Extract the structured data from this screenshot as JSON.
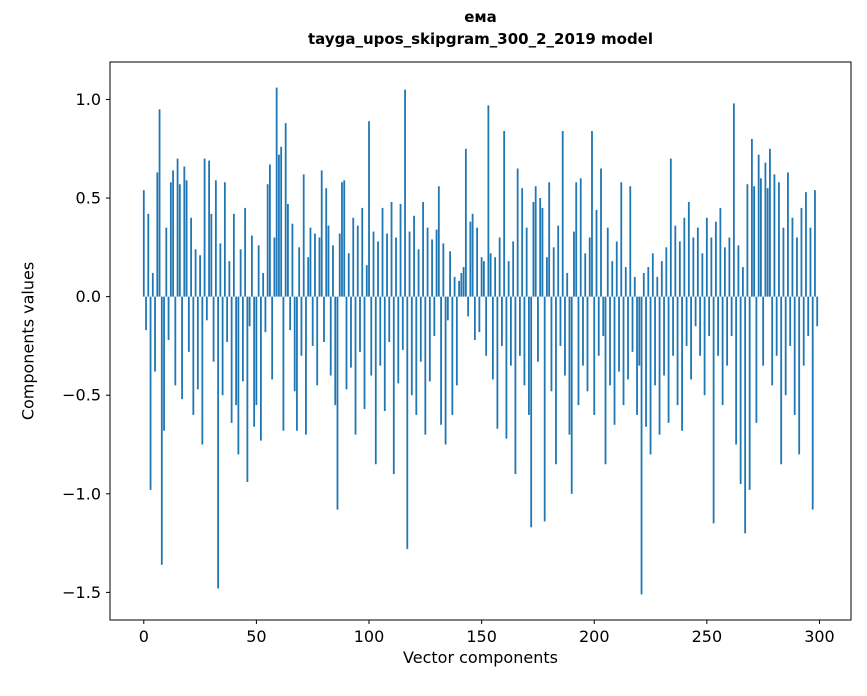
{
  "figure": {
    "title": "ема",
    "subtitle": "tayga_upos_skipgram_300_2_2019 model",
    "xlabel": "Vector components",
    "ylabel": "Components values"
  },
  "chart_data": {
    "type": "bar",
    "title": "ема",
    "subtitle": "tayga_upos_skipgram_300_2_2019 model",
    "xlabel": "Vector components",
    "ylabel": "Components values",
    "bar_color": "#1f77b4",
    "grid": false,
    "legend": "none",
    "xlim": [
      -15,
      314
    ],
    "ylim": [
      -1.64,
      1.19
    ],
    "xticks": [
      0,
      50,
      100,
      150,
      200,
      250,
      300
    ],
    "yticks": [
      1.0,
      0.5,
      0.0,
      -0.5,
      -1.0,
      -1.5
    ],
    "ytick_labels": [
      "1.0",
      "0.5",
      "0.0",
      "−0.5",
      "−1.0",
      "−1.5"
    ],
    "x_start": 0,
    "values": [
      0.54,
      -0.17,
      0.42,
      -0.98,
      0.12,
      -0.38,
      0.63,
      0.95,
      -1.36,
      -0.68,
      0.35,
      -0.22,
      0.58,
      0.64,
      -0.45,
      0.7,
      0.57,
      -0.52,
      0.66,
      0.59,
      -0.28,
      0.4,
      -0.6,
      0.24,
      -0.47,
      0.21,
      -0.75,
      0.7,
      -0.12,
      0.69,
      0.42,
      -0.33,
      0.59,
      -1.48,
      0.27,
      -0.5,
      0.58,
      -0.23,
      0.18,
      -0.64,
      0.42,
      -0.55,
      -0.8,
      0.24,
      -0.43,
      0.45,
      -0.94,
      -0.15,
      0.31,
      -0.66,
      -0.55,
      0.26,
      -0.73,
      0.12,
      -0.18,
      0.57,
      0.67,
      -0.42,
      0.3,
      1.06,
      0.72,
      0.76,
      -0.68,
      0.88,
      0.47,
      -0.17,
      0.37,
      -0.48,
      -0.68,
      0.25,
      -0.3,
      0.62,
      -0.7,
      0.2,
      0.35,
      -0.25,
      0.32,
      -0.45,
      0.3,
      0.64,
      -0.23,
      0.55,
      0.36,
      -0.4,
      0.26,
      -0.55,
      -1.08,
      0.32,
      0.58,
      0.59,
      -0.47,
      0.22,
      -0.36,
      0.4,
      -0.7,
      0.36,
      -0.28,
      0.45,
      -0.57,
      0.16,
      0.89,
      -0.4,
      0.33,
      -0.85,
      0.28,
      -0.35,
      0.45,
      -0.58,
      0.32,
      -0.23,
      0.48,
      -0.9,
      0.3,
      -0.44,
      0.47,
      -0.27,
      1.05,
      -1.28,
      0.33,
      -0.5,
      0.41,
      -0.6,
      0.24,
      -0.33,
      0.48,
      -0.7,
      0.35,
      -0.43,
      0.29,
      -0.2,
      0.34,
      0.56,
      -0.65,
      0.27,
      -0.75,
      -0.12,
      0.23,
      -0.6,
      0.1,
      -0.45,
      0.08,
      0.12,
      0.15,
      0.75,
      -0.1,
      0.38,
      0.42,
      -0.22,
      0.35,
      -0.18,
      0.2,
      0.18,
      -0.3,
      0.97,
      0.22,
      -0.42,
      0.2,
      -0.67,
      0.3,
      -0.25,
      0.84,
      -0.72,
      0.18,
      -0.35,
      0.28,
      -0.9,
      0.65,
      -0.3,
      0.55,
      -0.45,
      0.35,
      -0.6,
      -1.17,
      0.48,
      0.56,
      -0.33,
      0.5,
      0.45,
      -1.14,
      0.2,
      0.58,
      -0.48,
      0.25,
      -0.85,
      0.36,
      -0.25,
      0.84,
      -0.4,
      0.12,
      -0.7,
      -1.0,
      0.33,
      0.58,
      -0.55,
      0.6,
      -0.35,
      0.22,
      -0.48,
      0.3,
      0.84,
      -0.6,
      0.44,
      -0.3,
      0.65,
      -0.2,
      -0.85,
      0.35,
      -0.45,
      0.18,
      -0.65,
      0.28,
      -0.38,
      0.58,
      -0.55,
      0.15,
      -0.42,
      0.56,
      -0.28,
      0.1,
      -0.6,
      -0.35,
      -1.51,
      0.12,
      -0.66,
      0.15,
      -0.8,
      0.22,
      -0.45,
      0.1,
      -0.7,
      0.18,
      -0.4,
      0.25,
      -0.64,
      0.7,
      -0.3,
      0.36,
      -0.55,
      0.28,
      -0.68,
      0.4,
      -0.25,
      0.48,
      -0.42,
      0.3,
      -0.15,
      0.35,
      -0.3,
      0.22,
      -0.5,
      0.4,
      -0.2,
      0.3,
      -1.15,
      0.38,
      -0.3,
      0.45,
      -0.55,
      0.25,
      -0.35,
      0.3,
      -0.2,
      0.98,
      -0.75,
      0.26,
      -0.95,
      0.15,
      -1.2,
      0.57,
      -0.98,
      0.8,
      0.56,
      -0.64,
      0.72,
      0.6,
      -0.35,
      0.68,
      0.55,
      0.75,
      -0.45,
      0.62,
      -0.3,
      0.58,
      -0.85,
      0.35,
      -0.5,
      0.63,
      -0.25,
      0.4,
      -0.6,
      0.3,
      -0.8,
      0.45,
      -0.35,
      0.53,
      -0.2,
      0.35,
      -1.08,
      0.54,
      -0.15
    ]
  }
}
